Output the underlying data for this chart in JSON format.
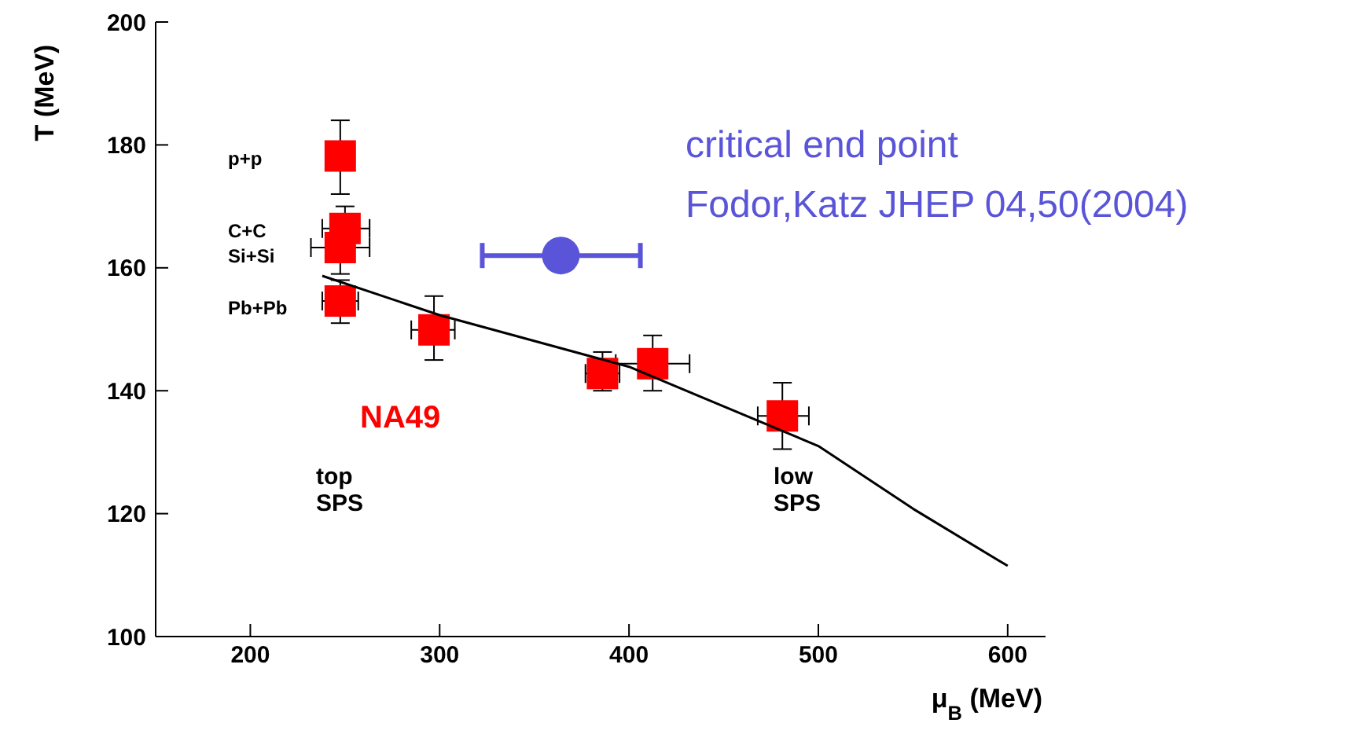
{
  "chart_data": {
    "type": "scatter",
    "xlabel": "μ$_{B}$ (MeV)",
    "ylabel": "T (MeV)",
    "xlim": [
      150,
      620
    ],
    "xticks": [
      200,
      300,
      400,
      500,
      600
    ],
    "ylim": [
      100,
      200
    ],
    "yticks": [
      100,
      120,
      140,
      160,
      180,
      200
    ],
    "grid": false,
    "legend": false,
    "series": [
      {
        "name": "NA49",
        "color": "#ff0000",
        "marker": "square",
        "x": [
          247.5,
          250,
          247.5,
          247.5,
          297,
          386,
          412.5,
          481
        ],
        "values": [
          178.2,
          166.4,
          163.3,
          154.6,
          149.9,
          142.8,
          144.4,
          135.9
        ],
        "errors": [
          [
            172,
            184
          ],
          [
            161,
            170
          ],
          [
            159,
            163.3
          ],
          [
            151,
            158
          ],
          [
            145,
            155.4
          ],
          [
            140,
            146.3
          ],
          [
            140,
            149
          ],
          [
            130.5,
            141.3
          ]
        ],
        "xerrors": [
          null,
          [
            238,
            263
          ],
          [
            232,
            263
          ],
          [
            238,
            257
          ],
          [
            285,
            308
          ],
          [
            377,
            395
          ],
          [
            393,
            432
          ],
          [
            468,
            495
          ]
        ]
      },
      {
        "name": "critical end point",
        "color": "#5a55d8",
        "marker": "circle",
        "x": [
          364
        ],
        "values": [
          162
        ],
        "xerrors": [
          [
            322.5,
            406
          ]
        ]
      },
      {
        "type": "line",
        "color": "#000000",
        "marker": "none",
        "x": [
          238,
          300,
          400,
          500,
          550,
          600
        ],
        "values": [
          158.7,
          152.3,
          143.9,
          131,
          120.8,
          111.5
        ]
      }
    ],
    "annotations": [
      "p+p",
      "C+C",
      "Si+Si",
      "Pb+Pb",
      "top SPS",
      "low SPS",
      "Fodor,Katz JHEP 04,50(2004)"
    ]
  }
}
